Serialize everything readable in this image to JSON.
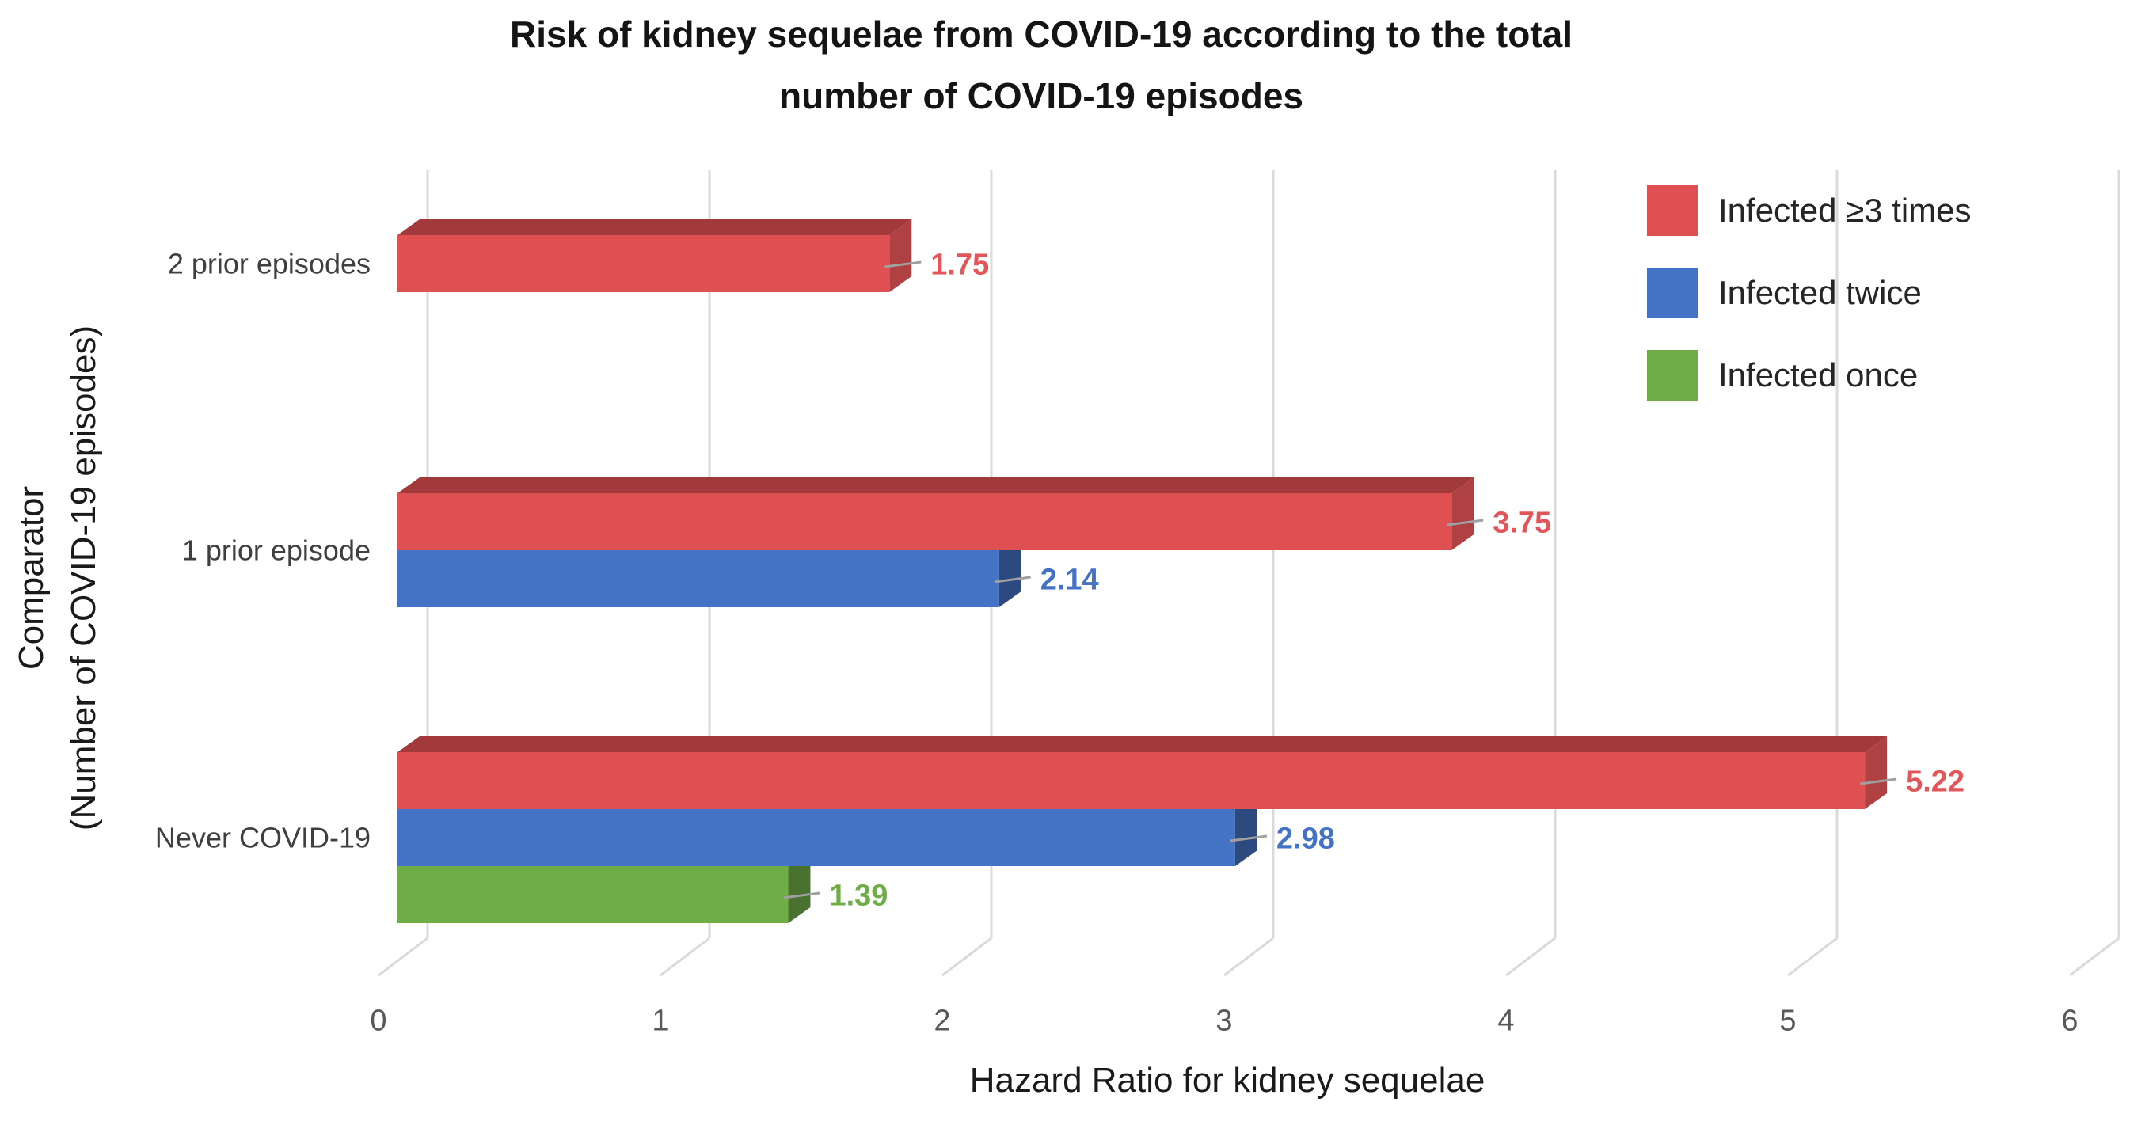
{
  "title": {
    "line1": "Risk of kidney sequelae from COVID-19 according to the total",
    "line2": "number of COVID-19 episodes"
  },
  "axes": {
    "x_title": "Hazard Ratio for kidney sequelae",
    "y_title_line1": "Comparator",
    "y_title_line2": "(Number of COVID-19 episodes)",
    "x_ticks": [
      "0",
      "1",
      "2",
      "3",
      "4",
      "5",
      "6"
    ]
  },
  "legend": {
    "position": "top-right",
    "items": [
      {
        "label": "Infected ≥3 times",
        "color": "#DE5052"
      },
      {
        "label": "Infected twice",
        "color": "#4472C4"
      },
      {
        "label": "Infected once",
        "color": "#70AD47"
      }
    ]
  },
  "chart_data": {
    "type": "bar",
    "orientation": "horizontal",
    "style": "3d",
    "title": "Risk of kidney sequelae from COVID-19 according to the total number of COVID-19 episodes",
    "categories": [
      "2 prior episodes",
      "1 prior episode",
      "Never COVID-19"
    ],
    "series": [
      {
        "name": "Infected ≥3 times",
        "color": "#DE5052",
        "color_top": "#A23A3C",
        "color_side": "#AF4143",
        "label_color": "#E25558",
        "values": [
          1.75,
          3.75,
          5.22
        ]
      },
      {
        "name": "Infected twice",
        "color": "#4472C4",
        "color_top": "#2F4F89",
        "color_side": "#2C4A80",
        "label_color": "#4472C4",
        "values": [
          null,
          2.14,
          2.98
        ]
      },
      {
        "name": "Infected once",
        "color": "#70AD47",
        "color_top": "#4C752F",
        "color_side": "#497130",
        "label_color": "#70AD47",
        "values": [
          null,
          null,
          1.39
        ]
      }
    ],
    "xlabel": "Hazard Ratio for kidney sequelae",
    "ylabel": "Comparator (Number of COVID-19 episodes)",
    "xlim": [
      0,
      6
    ],
    "grid": true,
    "data_labels": true,
    "legend_position": "top-right",
    "gridline_color": "#DADADA",
    "leader_line_color": "#A0A0A0",
    "tick_label_color": "#595959",
    "category_label_color": "#3F3F3F"
  }
}
